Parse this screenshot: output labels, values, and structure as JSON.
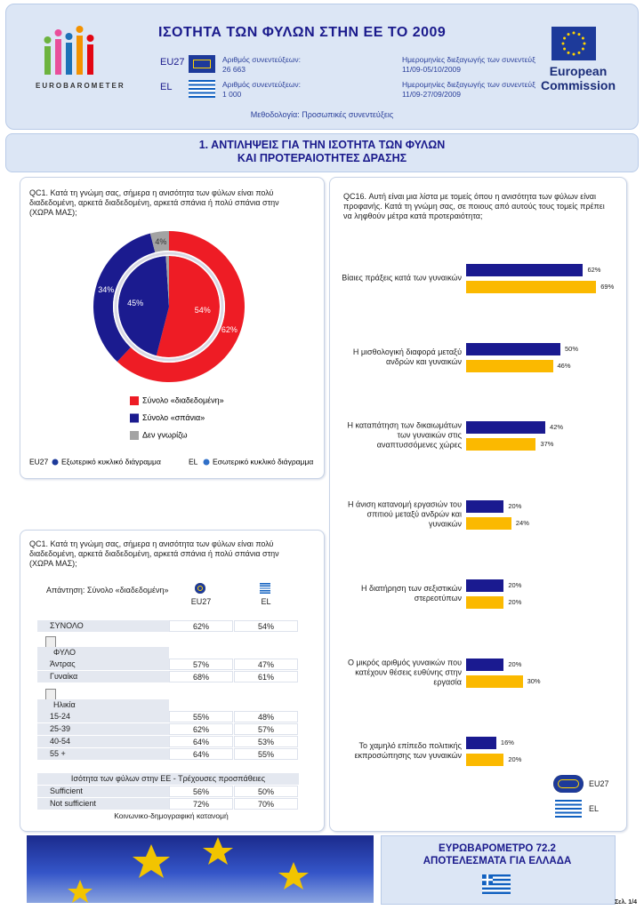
{
  "header": {
    "title": "ΙΣΟΤΗΤΑ ΤΩΝ ΦΥΛΩΝ ΣΤΗΝ ΕΕ ΤΟ 2009",
    "logo_text": "EUROBAROMETER",
    "commission": [
      "European",
      "Commission"
    ],
    "rows": [
      {
        "code": "EU27",
        "interviews_label": "Αριθμός συνεντεύξεων:",
        "interviews": "26 663",
        "dates_label": "Ημερομηνίες διεξαγωγής των συνεντεύξεων:",
        "dates": "11/09-05/10/2009"
      },
      {
        "code": "EL",
        "interviews_label": "Αριθμός συνεντεύξεων:",
        "interviews": "1 000",
        "dates_label": "Ημερομηνίες διεξαγωγής των συνεντεύξεων:",
        "dates": "11/09-27/09/2009"
      }
    ],
    "methodology": "Μεθοδολογία: Προσωπικές συνεντεύξεις"
  },
  "section_title": [
    "1. ΑΝΤΙΛΗΨΕΙΣ ΓΙΑ ΤΗΝ ΙΣΟΤΗΤΑ ΤΩΝ ΦΥΛΩΝ",
    "ΚΑΙ ΠΡΟΤΕΡΑΙΟΤΗΤΕΣ ΔΡΑΣΗΣ"
  ],
  "chart_data": [
    {
      "type": "pie",
      "title": "QC1. Κατά τη γνώμη σας, σήμερα η ανισότητα των φύλων είναι πολύ διαδεδομένη, αρκετά διαδεδομένη, αρκετά σπάνια ή πολύ σπάνια στην (ΧΩΡΑ ΜΑΣ);",
      "categories": [
        "Σύνολο «διαδεδομένη»",
        "Σύνολο «σπάνια»",
        "Δεν γνωρίζω"
      ],
      "colors": [
        "#ee1c25",
        "#1b1b8f",
        "#a3a3a3"
      ],
      "series": [
        {
          "code": "EU27",
          "name": "Εξωτερικό κυκλικό διάγραμμα",
          "values": [
            62,
            34,
            4
          ],
          "value_labels": [
            "62%",
            "34%",
            "4%"
          ]
        },
        {
          "code": "EL",
          "name": "Εσωτερικό κυκλικό διάγραμμα",
          "values": [
            54,
            45,
            1
          ],
          "value_labels": [
            "54%",
            "45%",
            null
          ]
        }
      ]
    },
    {
      "type": "bar",
      "orientation": "horizontal",
      "title": "QC16. Αυτή είναι μια λίστα με τομείς όπου η ανισότητα των φύλων είναι προφανής. Κατά τη γνώμη σας, σε ποιους από αυτούς τους τομείς πρέπει να ληφθούν μέτρα κατά προτεραιότητα;",
      "categories": [
        "Βίαιες πράξεις κατά των γυναικών",
        "Η μισθολογική διαφορά μεταξύ ανδρών και γυναικών",
        "Η καταπάτηση των δικαιωμάτων των γυναικών στις αναπτυσσόμενες χώρες",
        "Η άνιση κατανομή εργασιών του σπιτιού μεταξύ ανδρών και γυναικών",
        "Η διατήρηση των σεξιστικών στερεοτύπων",
        "Ο μικρός αριθμός γυναικών που κατέχουν θέσεις ευθύνης στην εργασία",
        "Το χαμηλό επίπεδο πολιτικής εκπροσώπησης των γυναικών"
      ],
      "xlim": [
        0,
        100
      ],
      "series": [
        {
          "name": "EU27",
          "color": "#1a1a90",
          "values": [
            62,
            50,
            42,
            20,
            20,
            20,
            16
          ],
          "value_labels": [
            "62%",
            "50%",
            "42%",
            "20%",
            "20%",
            "20%",
            "16%"
          ]
        },
        {
          "name": "EL",
          "color": "#fbb900",
          "values": [
            69,
            46,
            37,
            24,
            20,
            30,
            20
          ],
          "value_labels": [
            "69%",
            "46%",
            "37%",
            "24%",
            "20%",
            "30%",
            "20%"
          ]
        }
      ]
    }
  ],
  "table": {
    "question": "QC1. Κατά τη γνώμη σας, σήμερα η ανισότητα των φύλων είναι πολύ διαδεδομένη, αρκετά διαδεδομένη, αρκετά σπάνια ή πολύ σπάνια στην (ΧΩΡΑ ΜΑΣ);",
    "answer_label": "Απάντηση: Σύνολο «διαδεδομένη»",
    "columns": [
      "EU27",
      "EL"
    ],
    "groups": [
      {
        "rows": [
          [
            "ΣΥΝΟΛΟ",
            "62%",
            "54%"
          ]
        ]
      },
      {
        "title": "ΦΥΛΟ",
        "rows": [
          [
            "Άντρας",
            "57%",
            "47%"
          ],
          [
            "Γυναίκα",
            "68%",
            "61%"
          ]
        ]
      },
      {
        "title": "Ηλικία",
        "rows": [
          [
            "15-24",
            "55%",
            "48%"
          ],
          [
            "25-39",
            "62%",
            "57%"
          ],
          [
            "40-54",
            "64%",
            "53%"
          ],
          [
            "55 +",
            "64%",
            "55%"
          ]
        ]
      },
      {
        "title": "Ισότητα των φύλων στην ΕΕ - Τρέχουσες προσπάθειες",
        "rows": [
          [
            "Sufficient",
            "56%",
            "50%"
          ],
          [
            "Not sufficient",
            "72%",
            "70%"
          ]
        ]
      }
    ],
    "note": "Κοινωνικο-δημογραφική κατανομή"
  },
  "footer": {
    "lines": [
      "ΕΥΡΩΒΑΡΟΜΕΤΡΟ 72.2",
      "ΑΠΟΤΕΛΕΣΜΑΤΑ ΓΙΑ ΕΛΛΑΔΑ"
    ],
    "page": "Σελ. 1/4"
  }
}
